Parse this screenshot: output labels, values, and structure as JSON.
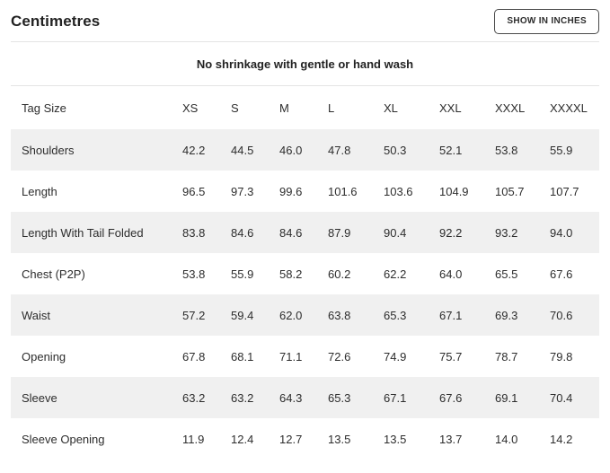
{
  "header": {
    "title": "Centimetres",
    "toggle_button_label": "SHOW IN INCHES"
  },
  "note": "No shrinkage with gentle or hand wash",
  "table": {
    "header_label": "Tag Size",
    "sizes": [
      "XS",
      "S",
      "M",
      "L",
      "XL",
      "XXL",
      "XXXL",
      "XXXXL"
    ],
    "rows": [
      {
        "label": "Shoulders",
        "values": [
          "42.2",
          "44.5",
          "46.0",
          "47.8",
          "50.3",
          "52.1",
          "53.8",
          "55.9"
        ]
      },
      {
        "label": "Length",
        "values": [
          "96.5",
          "97.3",
          "99.6",
          "101.6",
          "103.6",
          "104.9",
          "105.7",
          "107.7"
        ]
      },
      {
        "label": "Length With Tail Folded",
        "values": [
          "83.8",
          "84.6",
          "84.6",
          "87.9",
          "90.4",
          "92.2",
          "93.2",
          "94.0"
        ]
      },
      {
        "label": "Chest (P2P)",
        "values": [
          "53.8",
          "55.9",
          "58.2",
          "60.2",
          "62.2",
          "64.0",
          "65.5",
          "67.6"
        ]
      },
      {
        "label": "Waist",
        "values": [
          "57.2",
          "59.4",
          "62.0",
          "63.8",
          "65.3",
          "67.1",
          "69.3",
          "70.6"
        ]
      },
      {
        "label": "Opening",
        "values": [
          "67.8",
          "68.1",
          "71.1",
          "72.6",
          "74.9",
          "75.7",
          "78.7",
          "79.8"
        ]
      },
      {
        "label": "Sleeve",
        "values": [
          "63.2",
          "63.2",
          "64.3",
          "65.3",
          "67.1",
          "67.6",
          "69.1",
          "70.4"
        ]
      },
      {
        "label": "Sleeve Opening",
        "values": [
          "11.9",
          "12.4",
          "12.7",
          "13.5",
          "13.5",
          "13.7",
          "14.0",
          "14.2"
        ]
      }
    ]
  },
  "colors": {
    "text": "#2d2d2d",
    "row_stripe": "#f0f0f0",
    "divider": "#e4e4e4",
    "button_border": "#4a4a4a"
  }
}
